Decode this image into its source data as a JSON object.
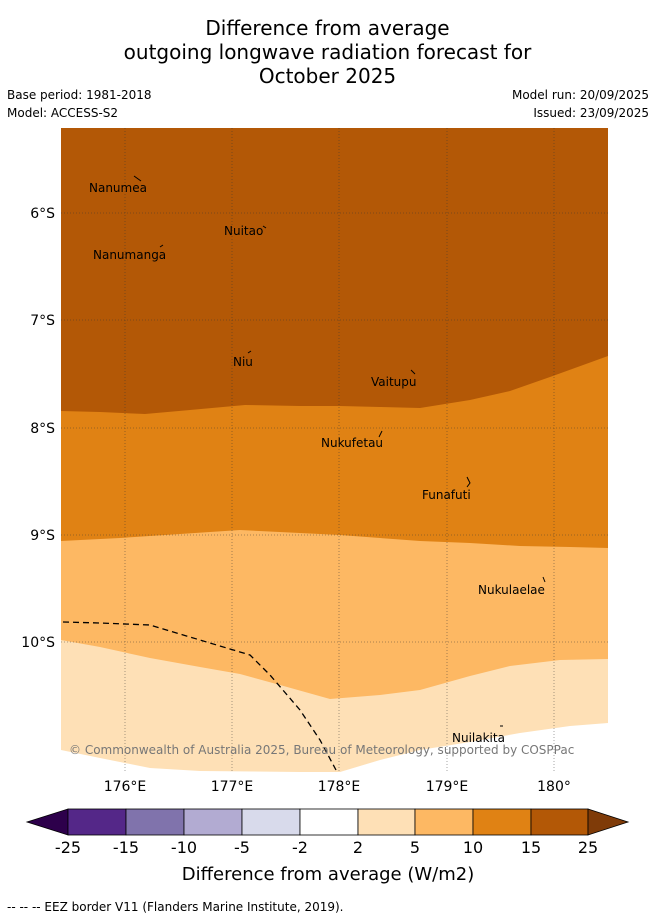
{
  "header": {
    "title_lines": [
      "Difference from average",
      "outgoing longwave radiation forecast for",
      "October 2025"
    ],
    "base_period": "Base period: 1981-2018",
    "model": "Model: ACCESS-S2",
    "model_run": "Model run: 20/09/2025",
    "issued": "Issued: 23/09/2025"
  },
  "map": {
    "lat_labels": [
      "6°S",
      "7°S",
      "8°S",
      "9°S",
      "10°S"
    ],
    "lon_labels": [
      "176°E",
      "177°E",
      "178°E",
      "179°E",
      "180°"
    ],
    "places": [
      "Nanumea",
      "Nuitao",
      "Nanumanga",
      "Niu",
      "Vaitupu",
      "Nukufetau",
      "Funafuti",
      "Nukulaelae",
      "Nuilakita"
    ],
    "copyright": "© Commonwealth of Australia 2025, Bureau of Meteorology, supported by COSPPac",
    "colors": {
      "c15_25": "#b35806",
      "c10_15": "#e08214",
      "c5_10": "#fdb863",
      "c2_5": "#fee0b6",
      "white": "#ffffff",
      "n2_5": "#d8daeb",
      "n5_10": "#b2abd2",
      "n10_15": "#8073ac",
      "n15_25": "#542788",
      "under": "#2d004b",
      "over": "#7f3b08"
    }
  },
  "colorbar": {
    "tick_labels": [
      "-25",
      "-15",
      "-10",
      "-5",
      "-2",
      "2",
      "5",
      "10",
      "15",
      "25"
    ],
    "title": "Difference from average (W/m2)"
  },
  "footnote": "--  --  -- EEZ border V11 (Flanders Marine Institute, 2019)."
}
